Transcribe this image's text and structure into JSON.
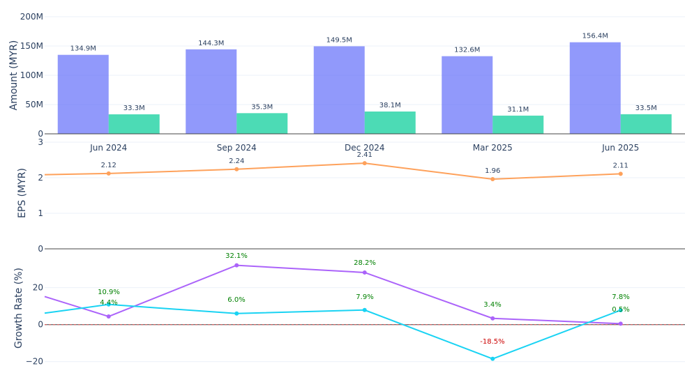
{
  "colors": {
    "revenue": "#636efa",
    "profit": "#00cc96",
    "eps": "#fea15b",
    "growth_a": "#ab63fa",
    "growth_b": "#19d3f3",
    "positive_label": "#008000",
    "negative_label": "#cc0000",
    "zero_line": "#e45756"
  },
  "chart_data": [
    {
      "type": "bar",
      "categories": [
        "Jun 2024",
        "Sep 2024",
        "Dec 2024",
        "Mar 2025",
        "Jun 2025"
      ],
      "series": [
        {
          "values": [
            134.9,
            144.3,
            149.5,
            132.6,
            156.4
          ],
          "labels": [
            "134.9M",
            "144.3M",
            "149.5M",
            "132.6M",
            "156.4M"
          ]
        },
        {
          "values": [
            33.3,
            35.3,
            38.1,
            31.1,
            33.5
          ],
          "labels": [
            "33.3M",
            "35.3M",
            "38.1M",
            "31.1M",
            "33.5M"
          ]
        }
      ],
      "ylabel": "Amount (MYR)",
      "ylim": [
        0,
        200
      ],
      "yticks": [
        0,
        50,
        100,
        150,
        200
      ],
      "ytick_labels": [
        "0",
        "50M",
        "100M",
        "150M",
        "200M"
      ],
      "grid": true
    },
    {
      "type": "line",
      "categories": [
        "Jun 2024",
        "Sep 2024",
        "Dec 2024",
        "Mar 2025",
        "Jun 2025"
      ],
      "series": [
        {
          "values": [
            2.12,
            2.24,
            2.41,
            1.96,
            2.11
          ],
          "labels": [
            "2.12",
            "2.24",
            "2.41",
            "1.96",
            "2.11"
          ]
        }
      ],
      "ylabel": "EPS (MYR)",
      "ylim": [
        0,
        3
      ],
      "yticks": [
        0,
        1,
        2,
        3
      ],
      "ytick_labels": [
        "0",
        "1",
        "2",
        "3"
      ],
      "grid": true
    },
    {
      "type": "line",
      "categories": [
        "Jun 2024",
        "Sep 2024",
        "Dec 2024",
        "Mar 2025",
        "Jun 2025"
      ],
      "series": [
        {
          "values": [
            4.4,
            32.1,
            28.2,
            3.4,
            0.5
          ],
          "labels": [
            "4.4%",
            "32.1%",
            "28.2%",
            "3.4%",
            "0.5%"
          ]
        },
        {
          "values": [
            10.9,
            6.0,
            7.9,
            -18.5,
            7.8
          ],
          "labels": [
            "10.9%",
            "6.0%",
            "7.9%",
            "-18.5%",
            "7.8%"
          ]
        }
      ],
      "ylabel": "Growth Rate (%)",
      "ylim": [
        -25,
        41
      ],
      "yticks": [
        -20,
        0,
        20
      ],
      "ytick_labels": [
        "−20",
        "0",
        "20"
      ],
      "reference_line": 0,
      "grid": true
    }
  ]
}
